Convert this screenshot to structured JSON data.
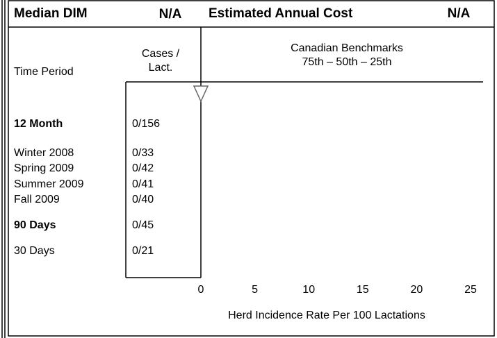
{
  "header": {
    "median_dim_label": "Median DIM",
    "median_dim_value": "N/A",
    "cost_label": "Estimated Annual Cost",
    "cost_value": "N/A"
  },
  "columns": {
    "period": "Time Period",
    "cases": [
      "Cases /",
      "Lact."
    ],
    "benchmarks": [
      "Canadian Benchmarks",
      "75th – 50th – 25th"
    ]
  },
  "rows": [
    {
      "period": "12 Month",
      "cases": "0/156",
      "bold": true
    },
    {
      "period": "Winter 2008",
      "cases": "0/33"
    },
    {
      "period": "Spring 2009",
      "cases": "0/42"
    },
    {
      "period": "Summer 2009",
      "cases": "0/41"
    },
    {
      "period": "Fall 2009",
      "cases": "0/40"
    },
    {
      "period": "90 Days",
      "cases": "0/45",
      "bold": true
    },
    {
      "period": "30 Days",
      "cases": "0/21"
    }
  ],
  "axis": {
    "xlim": [
      0,
      25
    ],
    "xticks": [
      0,
      5,
      10,
      15,
      20,
      25
    ],
    "xlabel": "Herd Incidence Rate Per 100 Lactations"
  }
}
